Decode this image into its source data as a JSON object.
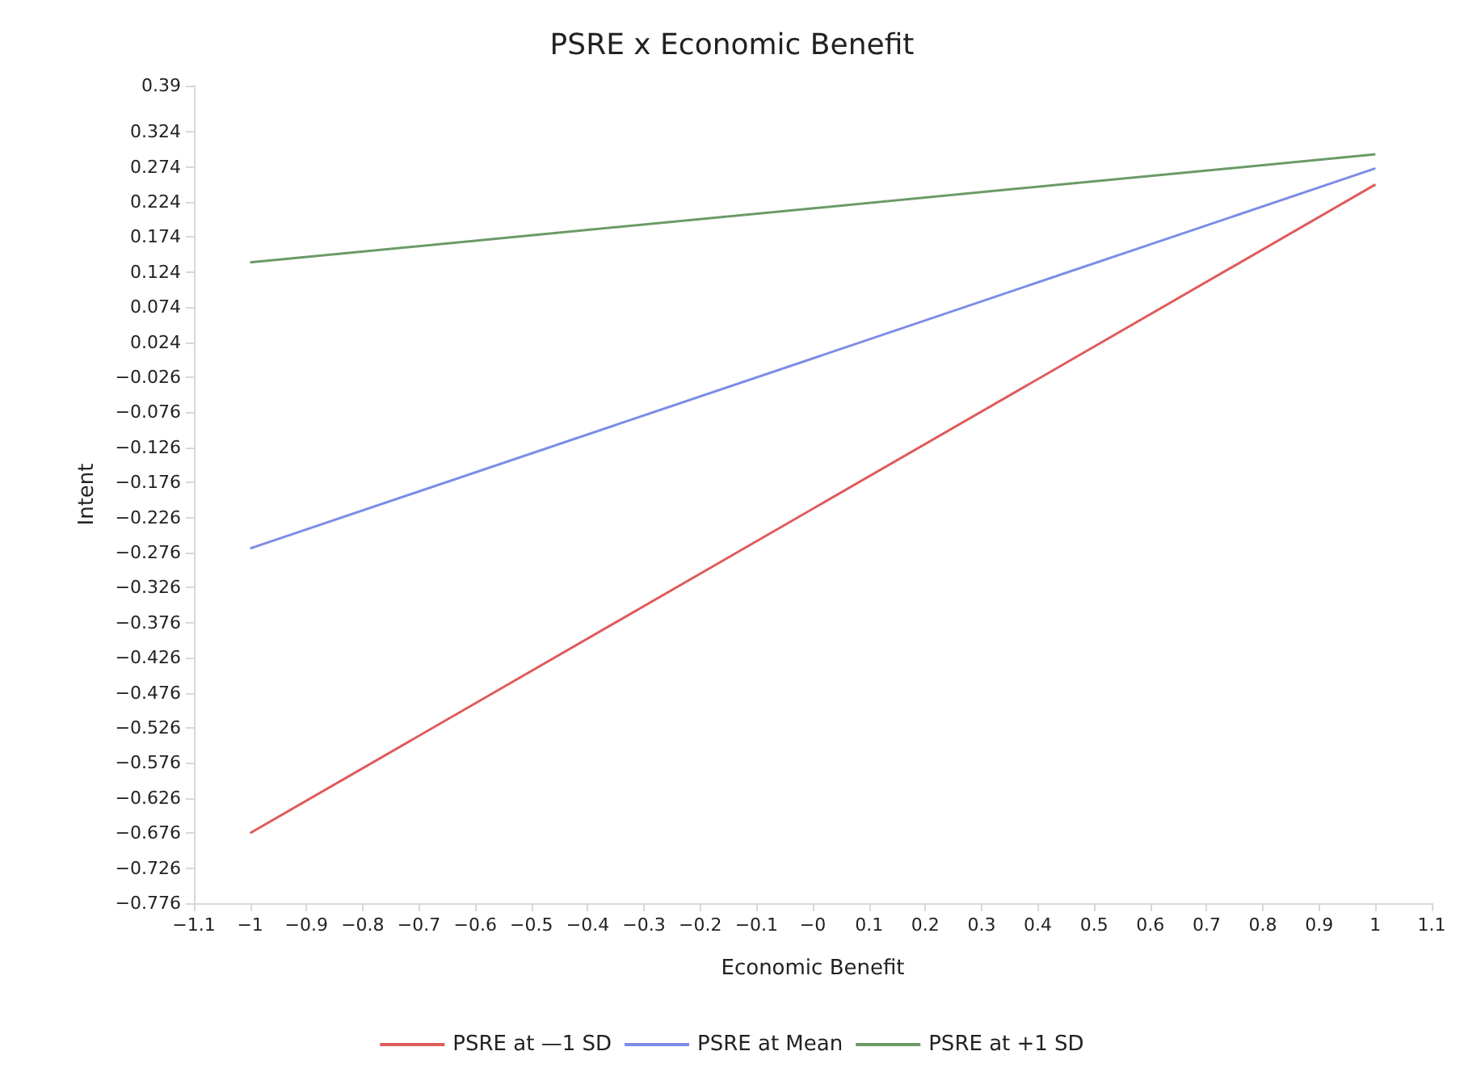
{
  "chart_data": {
    "type": "line",
    "title": "PSRE x Economic Benefit",
    "xlabel": "Economic Benefit",
    "ylabel": "Intent",
    "x": [
      -1,
      1
    ],
    "series": [
      {
        "name": "PSRE at —1 SD",
        "color": "#e05a5a",
        "values": [
          -0.676,
          0.249
        ]
      },
      {
        "name": "PSRE at Mean",
        "color": "#7b8de6",
        "values": [
          -0.27,
          0.272
        ]
      },
      {
        "name": "PSRE at +1 SD",
        "color": "#6a9b67",
        "values": [
          0.138,
          0.292
        ]
      }
    ],
    "xlim": [
      -1.1,
      1.1
    ],
    "xticks": [
      {
        "value": -1.1,
        "label": "−1.1"
      },
      {
        "value": -1,
        "label": "−1"
      },
      {
        "value": -0.9,
        "label": "−0.9"
      },
      {
        "value": -0.8,
        "label": "−0.8"
      },
      {
        "value": -0.7,
        "label": "−0.7"
      },
      {
        "value": -0.6,
        "label": "−0.6"
      },
      {
        "value": -0.5,
        "label": "−0.5"
      },
      {
        "value": -0.4,
        "label": "−0.4"
      },
      {
        "value": -0.3,
        "label": "−0.3"
      },
      {
        "value": -0.2,
        "label": "−0.2"
      },
      {
        "value": -0.1,
        "label": "−0.1"
      },
      {
        "value": 0,
        "label": "−0"
      },
      0.1,
      0.2,
      0.3,
      0.4,
      0.5,
      0.6,
      0.7,
      0.8,
      0.9,
      1,
      1.1
    ],
    "ylim": [
      -0.776,
      0.39
    ],
    "yticks": [
      {
        "value": -0.776,
        "label": "−0.776"
      },
      {
        "value": -0.726,
        "label": "−0.726"
      },
      {
        "value": -0.676,
        "label": "−0.676"
      },
      {
        "value": -0.626,
        "label": "−0.626"
      },
      {
        "value": -0.576,
        "label": "−0.576"
      },
      {
        "value": -0.526,
        "label": "−0.526"
      },
      {
        "value": -0.476,
        "label": "−0.476"
      },
      {
        "value": -0.426,
        "label": "−0.426"
      },
      {
        "value": -0.376,
        "label": "−0.376"
      },
      {
        "value": -0.326,
        "label": "−0.326"
      },
      {
        "value": -0.276,
        "label": "−0.276"
      },
      {
        "value": -0.226,
        "label": "−0.226"
      },
      {
        "value": -0.176,
        "label": "−0.176"
      },
      {
        "value": -0.126,
        "label": "−0.126"
      },
      {
        "value": -0.076,
        "label": "−0.076"
      },
      {
        "value": -0.026,
        "label": "−0.026"
      },
      0.024,
      0.074,
      0.124,
      0.174,
      0.224,
      0.274,
      0.324,
      0.39
    ],
    "grid": false,
    "legend": "bottom",
    "marker": "none",
    "line_style": "solid"
  }
}
